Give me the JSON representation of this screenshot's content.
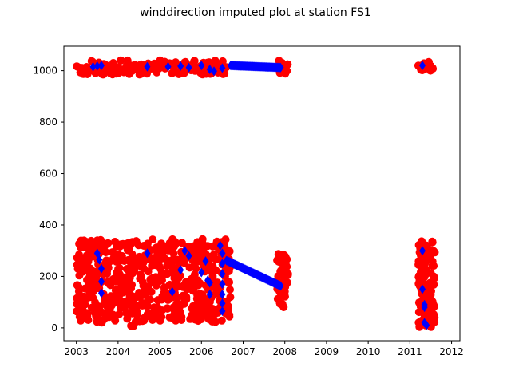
{
  "chart_data": {
    "type": "scatter",
    "title": "winddirection imputed plot at station FS1",
    "xlabel": "",
    "ylabel": "",
    "xlim": [
      2002.7,
      2012.2
    ],
    "ylim": [
      -50,
      1095
    ],
    "x_ticks": [
      2003,
      2004,
      2005,
      2006,
      2007,
      2008,
      2009,
      2010,
      2011,
      2012
    ],
    "x_tick_labels": [
      "2003",
      "2004",
      "2005",
      "2006",
      "2007",
      "2008",
      "2009",
      "2010",
      "2011",
      "2012"
    ],
    "y_ticks": [
      0,
      200,
      400,
      600,
      800,
      1000
    ],
    "y_tick_labels": [
      "0",
      "200",
      "400",
      "600",
      "800",
      "1000"
    ],
    "grid": false,
    "legend": "none",
    "series": [
      {
        "color": "#ff0000",
        "marker": "circle",
        "clusters": [
          {
            "x_range": [
              2003.0,
              2006.7
            ],
            "y_range": [
              985,
              1040
            ],
            "count": 140
          },
          {
            "x_range": [
              2003.0,
              2006.7
            ],
            "y_range": [
              20,
              345
            ],
            "count": 620
          },
          {
            "x_range": [
              2004.3,
              2004.4
            ],
            "y_range": [
              0,
              10
            ],
            "count": 3
          },
          {
            "x_range": [
              2007.8,
              2008.1
            ],
            "y_range": [
              985,
              1040
            ],
            "count": 14
          },
          {
            "x_range": [
              2007.8,
              2008.1
            ],
            "y_range": [
              75,
              300
            ],
            "count": 40
          },
          {
            "x_range": [
              2011.2,
              2011.6
            ],
            "y_range": [
              1000,
              1035
            ],
            "count": 16
          },
          {
            "x_range": [
              2011.2,
              2011.6
            ],
            "y_range": [
              0,
              345
            ],
            "count": 120
          }
        ]
      },
      {
        "color": "#0000ff",
        "marker": "diamond",
        "points": [
          [
            2003.4,
            1015
          ],
          [
            2003.5,
            1018
          ],
          [
            2003.6,
            1020
          ],
          [
            2004.7,
            1015
          ],
          [
            2005.2,
            1015
          ],
          [
            2005.5,
            1018
          ],
          [
            2005.7,
            1012
          ],
          [
            2006.0,
            1020
          ],
          [
            2006.2,
            1005
          ],
          [
            2006.3,
            998
          ],
          [
            2006.5,
            1010
          ],
          [
            2011.3,
            1020
          ],
          [
            2003.5,
            290
          ],
          [
            2003.55,
            265
          ],
          [
            2003.6,
            230
          ],
          [
            2003.6,
            180
          ],
          [
            2003.6,
            135
          ],
          [
            2004.7,
            290
          ],
          [
            2005.3,
            140
          ],
          [
            2005.5,
            225
          ],
          [
            2005.6,
            300
          ],
          [
            2005.7,
            280
          ],
          [
            2006.0,
            215
          ],
          [
            2006.1,
            260
          ],
          [
            2006.15,
            185
          ],
          [
            2006.2,
            175
          ],
          [
            2006.2,
            130
          ],
          [
            2006.45,
            320
          ],
          [
            2006.5,
            290
          ],
          [
            2006.5,
            250
          ],
          [
            2006.5,
            210
          ],
          [
            2006.5,
            170
          ],
          [
            2006.5,
            130
          ],
          [
            2006.5,
            95
          ],
          [
            2006.5,
            65
          ],
          [
            2011.3,
            300
          ],
          [
            2011.3,
            150
          ],
          [
            2011.35,
            90
          ],
          [
            2011.35,
            80
          ],
          [
            2011.35,
            20
          ],
          [
            2011.4,
            10
          ]
        ],
        "lines": [
          {
            "x_range": [
              2006.7,
              2007.9
            ],
            "y_range": [
              1020,
              1012
            ],
            "count": 60
          },
          {
            "x_range": [
              2006.6,
              2007.9
            ],
            "y_range": [
              262,
              163
            ],
            "count": 70
          }
        ]
      }
    ]
  }
}
